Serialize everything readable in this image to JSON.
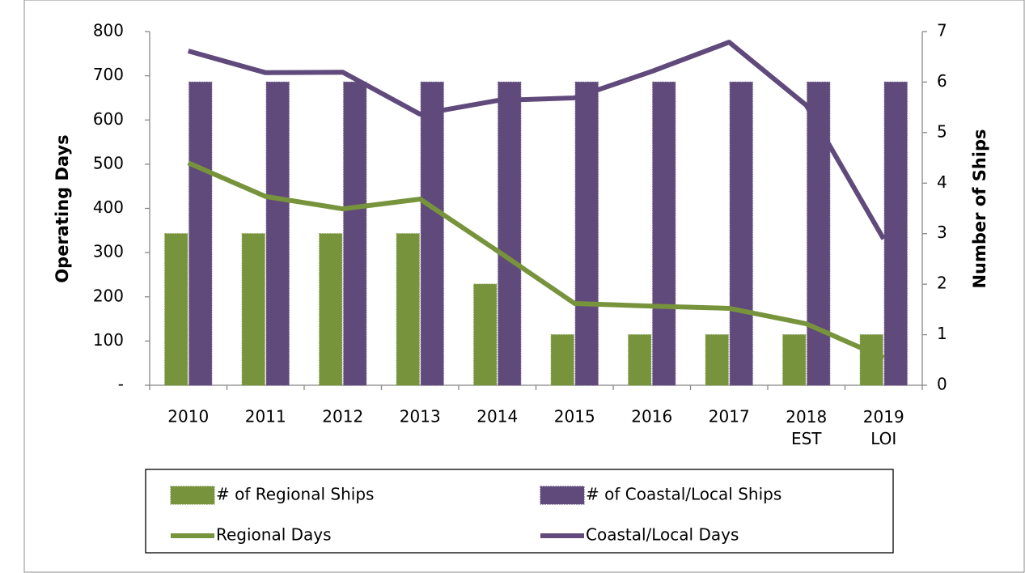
{
  "chart_data": {
    "type": "bar-line",
    "categories": [
      "2010",
      "2011",
      "2012",
      "2013",
      "2014",
      "2015",
      "2016",
      "2017",
      "2018\nEST",
      "2019\nLOI"
    ],
    "y_label": "Operating Days",
    "y2_label": "Number of Ships",
    "ylim": [
      0,
      800
    ],
    "yticks": [
      {
        "value": 0,
        "label": "-"
      },
      100,
      200,
      300,
      400,
      500,
      600,
      700,
      800
    ],
    "y2lim": [
      0,
      7
    ],
    "y2ticks": [
      0,
      1,
      2,
      3,
      4,
      5,
      6,
      7
    ],
    "legend": "bottom",
    "series": [
      {
        "name": "# of Regional Ships",
        "type": "bar",
        "axis": "y2",
        "color": "#77933c",
        "values": [
          3,
          3,
          3,
          3,
          2,
          1,
          1,
          1,
          1,
          1
        ]
      },
      {
        "name": "# of Coastal/Local Ships",
        "type": "bar",
        "axis": "y2",
        "color": "#604a7b",
        "values": [
          6,
          6,
          6,
          6,
          6,
          6,
          6,
          6,
          6,
          6
        ]
      },
      {
        "name": "Regional Days",
        "type": "line",
        "color": "#77933c",
        "values": [
          503,
          427,
          399,
          421,
          304,
          185,
          179,
          174,
          139,
          62
        ]
      },
      {
        "name": "Coastal/Local Days",
        "type": "line",
        "color": "#604a7b",
        "values": [
          756,
          707,
          708,
          613,
          644,
          650,
          710,
          776,
          633,
          331
        ]
      }
    ]
  }
}
